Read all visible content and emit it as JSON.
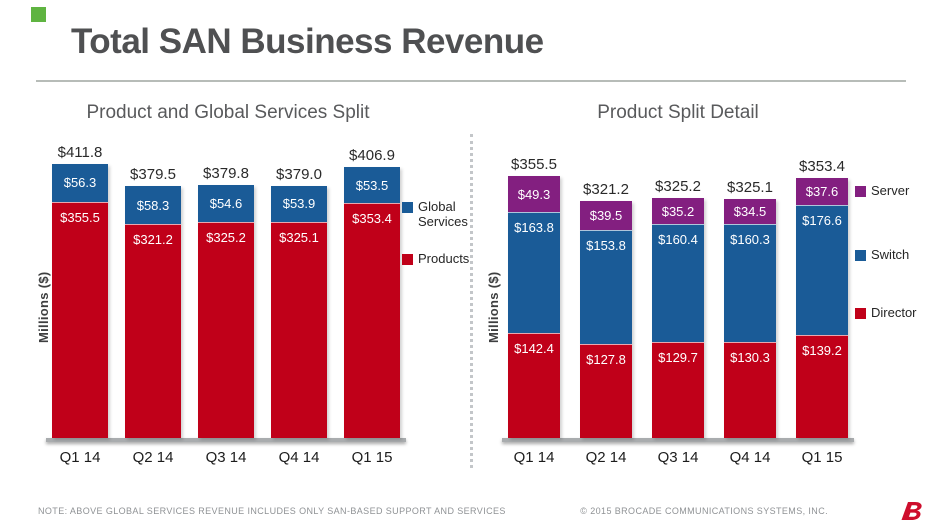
{
  "slide": {
    "title": "Total SAN Business Revenue"
  },
  "colors": {
    "accent_green": "#5FB441",
    "brand_red": "#CE0E2D",
    "products_red": "#C00019",
    "services_blue": "#1A5B97",
    "server_purple": "#831F80",
    "axis_gray": "#A9ACAE"
  },
  "chart_data": [
    {
      "type": "bar",
      "stacked": true,
      "title": "Product and Global Services Split",
      "ylabel": "Millions ($)",
      "xlabel": "",
      "legend_position": "right",
      "grid": false,
      "categories": [
        "Q1 14",
        "Q2 14",
        "Q3 14",
        "Q4 14",
        "Q1 15"
      ],
      "series": [
        {
          "name": "Global Services",
          "color": "#1A5B97",
          "values": [
            56.3,
            58.3,
            54.6,
            53.9,
            53.5
          ]
        },
        {
          "name": "Products",
          "color": "#C00019",
          "values": [
            355.5,
            321.2,
            325.2,
            325.1,
            353.4
          ]
        }
      ],
      "totals": [
        411.8,
        379.5,
        379.8,
        379.0,
        406.9
      ]
    },
    {
      "type": "bar",
      "stacked": true,
      "title": "Product Split Detail",
      "ylabel": "Millions ($)",
      "xlabel": "",
      "legend_position": "right",
      "grid": false,
      "categories": [
        "Q1 14",
        "Q2 14",
        "Q3 14",
        "Q4 14",
        "Q1 15"
      ],
      "series": [
        {
          "name": "Server",
          "color": "#831F80",
          "values": [
            49.3,
            39.5,
            35.2,
            34.5,
            37.6
          ]
        },
        {
          "name": "Switch",
          "color": "#1A5B97",
          "values": [
            163.8,
            153.8,
            160.4,
            160.3,
            176.6
          ]
        },
        {
          "name": "Director",
          "color": "#C00019",
          "values": [
            142.4,
            127.8,
            129.7,
            130.3,
            139.2
          ]
        }
      ],
      "totals": [
        355.5,
        321.2,
        325.2,
        325.1,
        353.4
      ]
    }
  ],
  "footer": {
    "note": "NOTE: ABOVE GLOBAL SERVICES REVENUE INCLUDES ONLY SAN-BASED SUPPORT AND SERVICES",
    "copyright": "© 2015 BROCADE COMMUNICATIONS SYSTEMS, INC.",
    "logo": "brocade-logo"
  }
}
